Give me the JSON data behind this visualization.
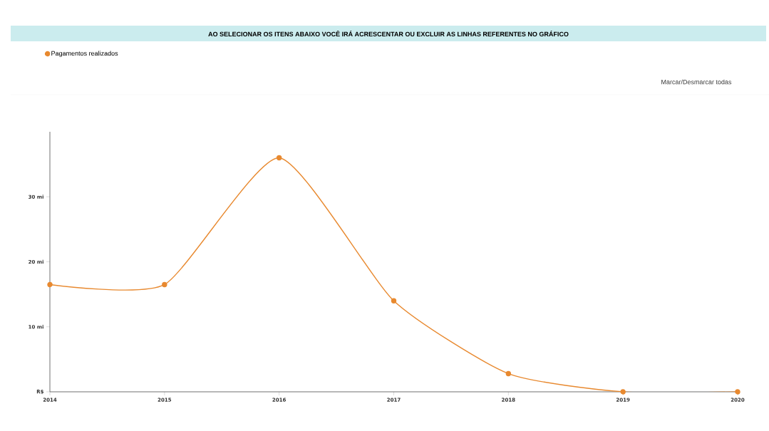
{
  "chart_data": {
    "type": "line",
    "title": "AO SELECIONAR OS ITENS ABAIXO VOCÊ IRÁ ACRESCENTAR OU EXCLUIR AS LINHAS REFERENTES NO GRÁFICO",
    "annotations": [
      "Marcar/Desmarcar todas"
    ],
    "categories": [
      "2014",
      "2015",
      "2016",
      "2017",
      "2018",
      "2019",
      "2020"
    ],
    "series": [
      {
        "name": "Pagamentos realizados",
        "color": "#e8892f",
        "values": [
          16.5,
          16.5,
          36,
          14,
          2.8,
          0,
          0
        ]
      }
    ],
    "ylim": [
      0,
      40
    ],
    "yticks": [
      {
        "value": 0,
        "label": "R$"
      },
      {
        "value": 10,
        "label": "10 mi"
      },
      {
        "value": 20,
        "label": "20 mi"
      },
      {
        "value": 30,
        "label": "30 mi"
      }
    ],
    "grid": false,
    "legend": "top left",
    "marker": "circle",
    "line_style": "solid"
  }
}
